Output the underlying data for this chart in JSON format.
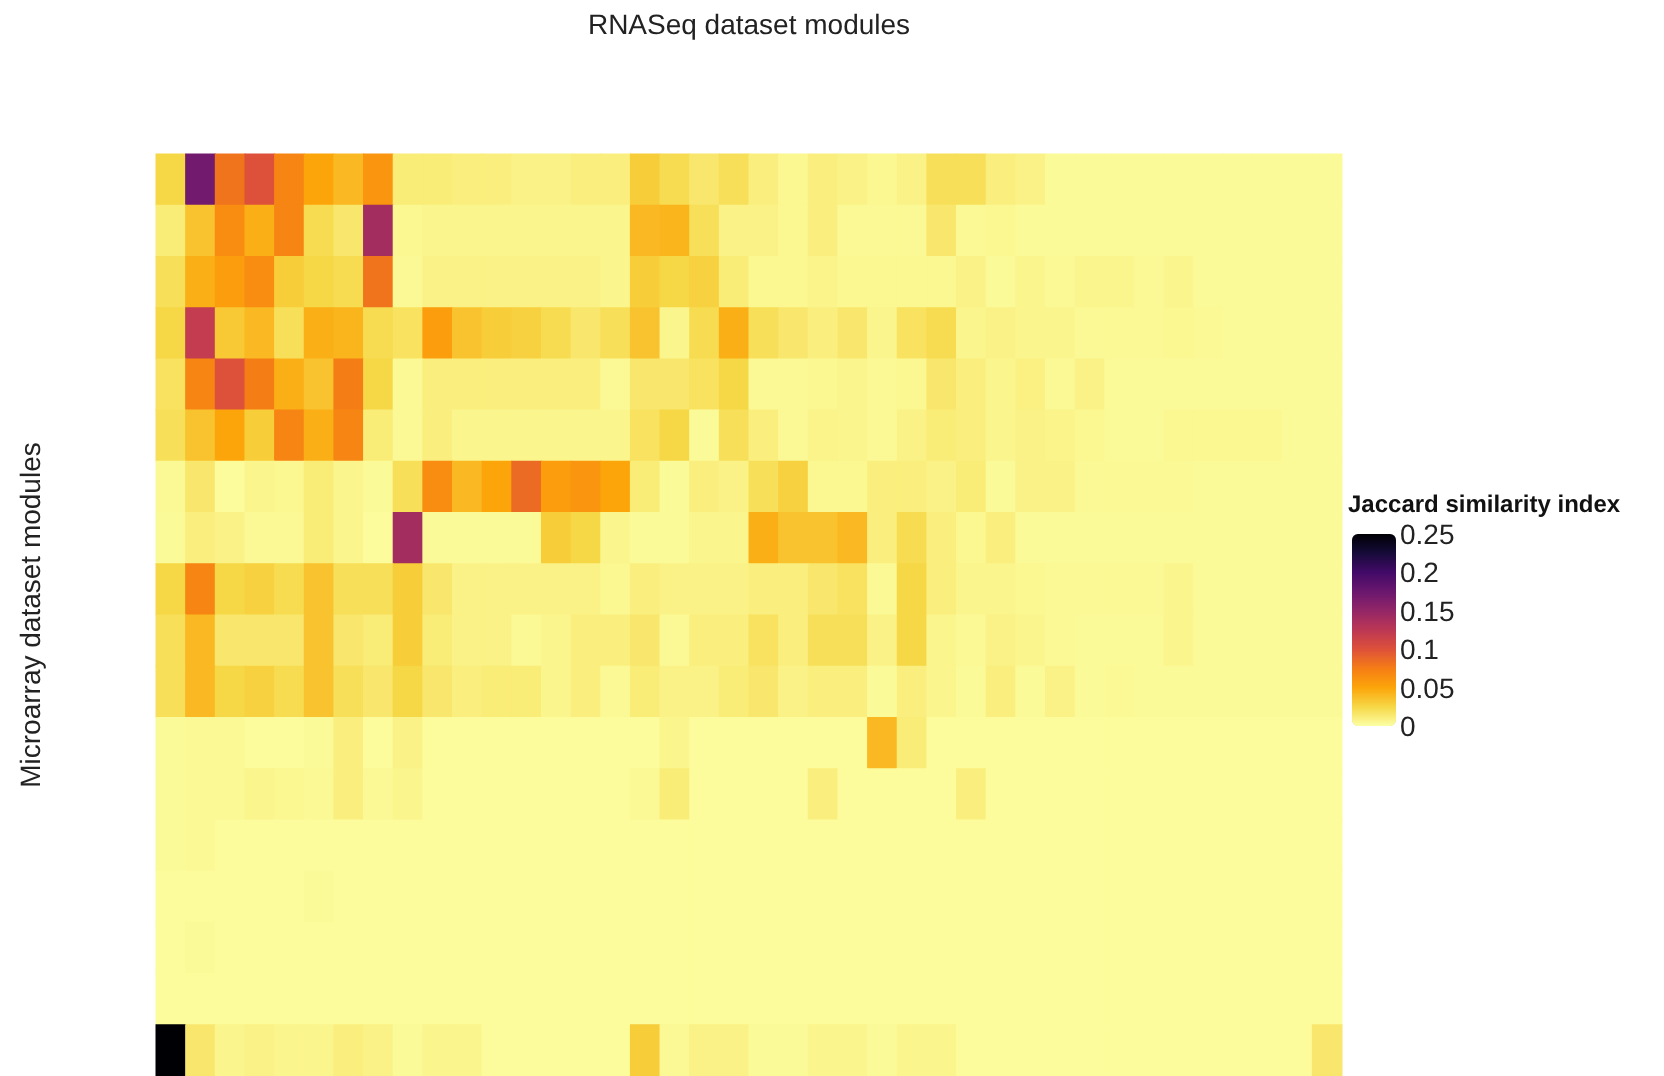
{
  "chart_data": {
    "type": "heatmap",
    "xlabel": "RNASeq dataset modules",
    "ylabel": "Microarray dataset modules",
    "clabel": "Jaccard similarity index",
    "clim": [
      0,
      0.25
    ],
    "cticks": [
      0,
      0.05,
      0.1,
      0.15,
      0.2,
      0.25
    ],
    "categories": [
      null,
      null,
      null,
      null,
      null,
      null,
      null,
      null,
      null,
      null,
      null,
      null,
      null,
      null,
      null,
      null,
      null,
      null,
      null,
      null,
      null,
      null,
      null,
      null,
      null,
      null,
      null,
      null,
      null,
      null,
      null,
      null,
      null,
      null,
      null,
      null,
      null,
      null,
      null,
      null
    ],
    "y_categories": [
      null,
      null,
      null,
      null,
      null,
      null,
      null,
      null,
      null,
      null,
      null,
      null,
      null,
      null,
      null,
      null,
      null,
      null
    ],
    "cells": [
      [
        0.025,
        0.17,
        0.08,
        0.1,
        0.07,
        0.05,
        0.04,
        0.06,
        0.012,
        0.012,
        0.01,
        0.01,
        0.008,
        0.008,
        0.01,
        0.01,
        0.03,
        0.022,
        0.015,
        0.02,
        0.01,
        0.005,
        0.01,
        0.008,
        0.005,
        0.008,
        0.02,
        0.02,
        0.01,
        0.008,
        0.003,
        0.003,
        0.003,
        0.003,
        0.003,
        0.003,
        0.003,
        0.003,
        0.003,
        0.003
      ],
      [
        0.012,
        0.035,
        0.065,
        0.045,
        0.07,
        0.022,
        0.015,
        0.14,
        0.005,
        0.006,
        0.006,
        0.006,
        0.006,
        0.006,
        0.006,
        0.006,
        0.04,
        0.042,
        0.02,
        0.008,
        0.008,
        0.005,
        0.01,
        0.004,
        0.004,
        0.004,
        0.015,
        0.004,
        0.005,
        0.003,
        0.003,
        0.003,
        0.003,
        0.003,
        0.003,
        0.003,
        0.003,
        0.003,
        0.003,
        0.003
      ],
      [
        0.02,
        0.045,
        0.055,
        0.065,
        0.03,
        0.025,
        0.022,
        0.08,
        0.004,
        0.008,
        0.008,
        0.008,
        0.008,
        0.008,
        0.008,
        0.006,
        0.03,
        0.025,
        0.028,
        0.012,
        0.005,
        0.005,
        0.007,
        0.005,
        0.005,
        0.005,
        0.005,
        0.008,
        0.003,
        0.006,
        0.004,
        0.006,
        0.006,
        0.004,
        0.006,
        0.003,
        0.003,
        0.003,
        0.003,
        0.003
      ],
      [
        0.025,
        0.12,
        0.032,
        0.04,
        0.02,
        0.045,
        0.042,
        0.022,
        0.018,
        0.055,
        0.035,
        0.03,
        0.028,
        0.022,
        0.015,
        0.02,
        0.035,
        0.006,
        0.022,
        0.045,
        0.02,
        0.015,
        0.01,
        0.015,
        0.006,
        0.018,
        0.022,
        0.006,
        0.008,
        0.006,
        0.006,
        0.004,
        0.004,
        0.004,
        0.005,
        0.004,
        0.003,
        0.003,
        0.003,
        0.003
      ],
      [
        0.018,
        0.07,
        0.1,
        0.075,
        0.045,
        0.035,
        0.075,
        0.025,
        0.004,
        0.01,
        0.01,
        0.01,
        0.01,
        0.01,
        0.01,
        0.004,
        0.015,
        0.015,
        0.018,
        0.025,
        0.004,
        0.004,
        0.005,
        0.006,
        0.004,
        0.005,
        0.015,
        0.01,
        0.006,
        0.009,
        0.004,
        0.008,
        0.003,
        0.003,
        0.003,
        0.003,
        0.003,
        0.003,
        0.003,
        0.003
      ],
      [
        0.02,
        0.035,
        0.05,
        0.03,
        0.07,
        0.045,
        0.07,
        0.012,
        0.004,
        0.01,
        0.006,
        0.006,
        0.006,
        0.006,
        0.006,
        0.006,
        0.018,
        0.025,
        0.003,
        0.02,
        0.01,
        0.004,
        0.007,
        0.006,
        0.004,
        0.008,
        0.012,
        0.01,
        0.006,
        0.008,
        0.007,
        0.005,
        0.003,
        0.003,
        0.005,
        0.005,
        0.005,
        0.005,
        0.003,
        0.003
      ],
      [
        0.004,
        0.015,
        0.002,
        0.006,
        0.005,
        0.012,
        0.006,
        0.003,
        0.02,
        0.065,
        0.04,
        0.05,
        0.085,
        0.055,
        0.06,
        0.05,
        0.012,
        0.003,
        0.01,
        0.008,
        0.02,
        0.028,
        0.005,
        0.005,
        0.01,
        0.01,
        0.008,
        0.012,
        0.003,
        0.008,
        0.008,
        0.004,
        0.004,
        0.004,
        0.004,
        0.003,
        0.003,
        0.003,
        0.003,
        0.003
      ],
      [
        0.003,
        0.01,
        0.008,
        0.004,
        0.004,
        0.012,
        0.006,
        0.002,
        0.14,
        0.003,
        0.003,
        0.003,
        0.003,
        0.03,
        0.025,
        0.006,
        0.003,
        0.003,
        0.006,
        0.006,
        0.045,
        0.035,
        0.035,
        0.04,
        0.01,
        0.022,
        0.01,
        0.005,
        0.01,
        0.003,
        0.003,
        0.003,
        0.003,
        0.003,
        0.003,
        0.003,
        0.003,
        0.003,
        0.003,
        0.003
      ],
      [
        0.025,
        0.07,
        0.025,
        0.028,
        0.022,
        0.035,
        0.02,
        0.02,
        0.03,
        0.015,
        0.008,
        0.008,
        0.008,
        0.008,
        0.008,
        0.005,
        0.01,
        0.008,
        0.008,
        0.008,
        0.01,
        0.01,
        0.015,
        0.018,
        0.004,
        0.025,
        0.01,
        0.006,
        0.006,
        0.005,
        0.004,
        0.004,
        0.004,
        0.004,
        0.006,
        0.003,
        0.003,
        0.003,
        0.003,
        0.003
      ],
      [
        0.02,
        0.04,
        0.015,
        0.015,
        0.015,
        0.035,
        0.015,
        0.012,
        0.03,
        0.012,
        0.008,
        0.008,
        0.004,
        0.006,
        0.01,
        0.01,
        0.015,
        0.004,
        0.01,
        0.01,
        0.018,
        0.01,
        0.02,
        0.02,
        0.008,
        0.025,
        0.006,
        0.004,
        0.008,
        0.006,
        0.004,
        0.003,
        0.003,
        0.003,
        0.006,
        0.003,
        0.003,
        0.003,
        0.003,
        0.003
      ],
      [
        0.02,
        0.04,
        0.025,
        0.028,
        0.022,
        0.035,
        0.02,
        0.015,
        0.025,
        0.015,
        0.01,
        0.012,
        0.012,
        0.006,
        0.01,
        0.004,
        0.012,
        0.008,
        0.008,
        0.012,
        0.015,
        0.008,
        0.01,
        0.01,
        0.003,
        0.01,
        0.006,
        0.003,
        0.01,
        0.003,
        0.008,
        0.003,
        0.004,
        0.003,
        0.003,
        0.003,
        0.003,
        0.003,
        0.003,
        0.003
      ],
      [
        0.003,
        0.004,
        0.004,
        0.002,
        0.002,
        0.003,
        0.01,
        0.002,
        0.008,
        0.002,
        0.002,
        0.002,
        0.002,
        0.002,
        0.002,
        0.002,
        0.002,
        0.006,
        0.002,
        0.002,
        0.002,
        0.002,
        0.002,
        0.002,
        0.04,
        0.012,
        0.002,
        0.002,
        0.002,
        0.002,
        0.002,
        0.002,
        0.002,
        0.002,
        0.002,
        0.002,
        0.002,
        0.002,
        0.002,
        0.002
      ],
      [
        0.003,
        0.004,
        0.004,
        0.006,
        0.005,
        0.004,
        0.01,
        0.004,
        0.006,
        0.002,
        0.002,
        0.002,
        0.002,
        0.002,
        0.002,
        0.002,
        0.004,
        0.012,
        0.002,
        0.002,
        0.002,
        0.002,
        0.01,
        0.002,
        0.002,
        0.002,
        0.002,
        0.01,
        0.002,
        0.002,
        0.002,
        0.002,
        0.002,
        0.002,
        0.002,
        0.002,
        0.002,
        0.002,
        0.002,
        0.002
      ],
      [
        0.003,
        0.004,
        0.002,
        0.002,
        0.002,
        0.002,
        0.002,
        0.002,
        0.002,
        0.002,
        0.002,
        0.002,
        0.002,
        0.002,
        0.002,
        0.002,
        0.002,
        0.002,
        0.002,
        0.002,
        0.002,
        0.002,
        0.002,
        0.002,
        0.002,
        0.002,
        0.002,
        0.002,
        0.002,
        0.002,
        0.002,
        0.002,
        0.002,
        0.002,
        0.002,
        0.002,
        0.002,
        0.002,
        0.002,
        0.002
      ],
      [
        0.002,
        0.002,
        0.002,
        0.002,
        0.002,
        0.003,
        0.002,
        0.002,
        0.002,
        0.002,
        0.002,
        0.002,
        0.002,
        0.002,
        0.002,
        0.002,
        0.002,
        0.002,
        0.002,
        0.002,
        0.002,
        0.002,
        0.002,
        0.002,
        0.002,
        0.002,
        0.002,
        0.002,
        0.002,
        0.002,
        0.002,
        0.002,
        0.002,
        0.002,
        0.002,
        0.002,
        0.002,
        0.002,
        0.002,
        0.002
      ],
      [
        0.002,
        0.003,
        0.002,
        0.002,
        0.002,
        0.002,
        0.002,
        0.002,
        0.002,
        0.002,
        0.002,
        0.002,
        0.002,
        0.002,
        0.002,
        0.002,
        0.002,
        0.002,
        0.002,
        0.002,
        0.002,
        0.002,
        0.002,
        0.002,
        0.002,
        0.002,
        0.002,
        0.002,
        0.002,
        0.002,
        0.002,
        0.002,
        0.002,
        0.002,
        0.002,
        0.002,
        0.002,
        0.002,
        0.002,
        0.002
      ],
      [
        0.002,
        0.002,
        0.002,
        0.002,
        0.002,
        0.002,
        0.002,
        0.002,
        0.002,
        0.002,
        0.002,
        0.002,
        0.002,
        0.002,
        0.002,
        0.002,
        0.002,
        0.002,
        0.002,
        0.002,
        0.002,
        0.002,
        0.002,
        0.002,
        0.002,
        0.002,
        0.002,
        0.002,
        0.002,
        0.002,
        0.002,
        0.002,
        0.002,
        0.002,
        0.002,
        0.002,
        0.002,
        0.002,
        0.002,
        0.002
      ],
      [
        0.25,
        0.015,
        0.006,
        0.008,
        0.006,
        0.006,
        0.01,
        0.008,
        0.003,
        0.006,
        0.006,
        0.002,
        0.002,
        0.002,
        0.002,
        0.002,
        0.03,
        0.004,
        0.008,
        0.008,
        0.003,
        0.003,
        0.006,
        0.006,
        0.003,
        0.006,
        0.006,
        0.002,
        0.002,
        0.002,
        0.002,
        0.002,
        0.002,
        0.002,
        0.002,
        0.002,
        0.002,
        0.002,
        0.002,
        0.015
      ]
    ]
  }
}
